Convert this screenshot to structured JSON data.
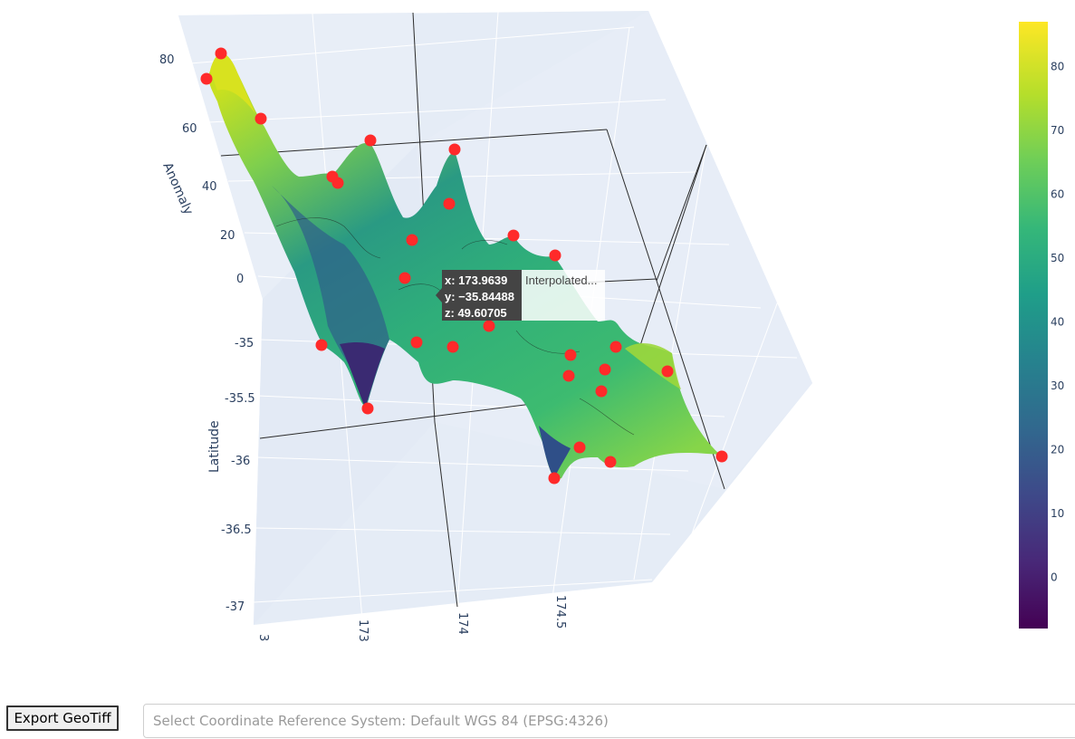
{
  "chart_data": {
    "type": "surface3d",
    "title": "",
    "axes": {
      "x": {
        "title": "",
        "tick_labels": [
          "3",
          "173",
          "174",
          "174.5"
        ]
      },
      "y": {
        "title": "Latitude",
        "tick_labels": [
          "-35",
          "-35.5",
          "-36",
          "-36.5",
          "-37"
        ]
      },
      "z": {
        "title": "Anomaly",
        "tick_labels": [
          "80",
          "60",
          "40",
          "20",
          "0"
        ]
      }
    },
    "colorbar": {
      "colorscale": "Viridis",
      "range": [
        -8,
        87
      ],
      "tick_labels": [
        "80",
        "70",
        "60",
        "50",
        "40",
        "30",
        "20",
        "10",
        "0"
      ],
      "tick_values": [
        80,
        70,
        60,
        50,
        40,
        30,
        20,
        10,
        0
      ]
    },
    "marker_color": "#ff2a2a",
    "hover": {
      "x": "x: 173.9639",
      "y": "y: −35.84488",
      "z": "z: 49.60705",
      "trace_name": "Interpolated..."
    }
  },
  "controls": {
    "export_label": "Export GeoTiff",
    "crs_placeholder": "Select Coordinate Reference System: Default WGS 84 (EPSG:4326)"
  }
}
